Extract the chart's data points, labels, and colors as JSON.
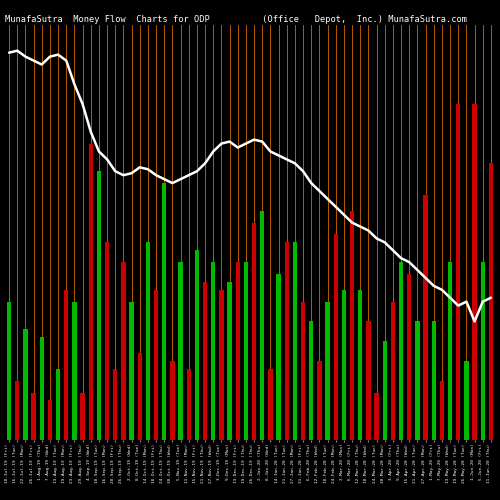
{
  "title": "MunafaSutra  Money Flow  Charts for ODP          (Office   Depot,  Inc.) MunafaSutra.com",
  "bg_color": "#000000",
  "line_color": "#ffffff",
  "separator_color": "#b85c00",
  "green_color": "#00bb00",
  "red_color": "#cc0000",
  "n_bars": 60,
  "bar_heights": [
    3.5,
    1.5,
    2.8,
    1.2,
    2.6,
    1.0,
    1.8,
    3.8,
    3.5,
    1.2,
    7.5,
    6.8,
    5.0,
    1.8,
    4.5,
    3.5,
    2.2,
    5.0,
    3.8,
    6.5,
    2.0,
    4.5,
    1.8,
    4.8,
    4.0,
    4.5,
    3.8,
    4.0,
    4.5,
    4.5,
    5.5,
    5.8,
    1.8,
    4.2,
    5.0,
    5.0,
    3.5,
    3.0,
    2.0,
    3.5,
    5.2,
    3.8,
    5.8,
    3.8,
    3.0,
    1.2,
    2.5,
    3.5,
    4.5,
    4.2,
    3.0,
    6.2,
    3.0,
    1.5,
    4.5,
    8.5,
    2.0,
    8.5,
    4.5,
    7.0
  ],
  "bar_colors": [
    "green",
    "red",
    "green",
    "red",
    "green",
    "red",
    "green",
    "red",
    "green",
    "red",
    "red",
    "green",
    "red",
    "red",
    "red",
    "green",
    "red",
    "green",
    "red",
    "green",
    "red",
    "green",
    "red",
    "green",
    "red",
    "green",
    "red",
    "green",
    "red",
    "green",
    "red",
    "green",
    "red",
    "green",
    "red",
    "green",
    "red",
    "green",
    "red",
    "green",
    "red",
    "green",
    "red",
    "green",
    "red",
    "red",
    "green",
    "red",
    "green",
    "red",
    "green",
    "red",
    "green",
    "red",
    "green",
    "red",
    "green",
    "red",
    "green",
    "red"
  ],
  "line_values": [
    9.8,
    9.85,
    9.7,
    9.6,
    9.5,
    9.7,
    9.75,
    9.6,
    9.0,
    8.5,
    7.8,
    7.3,
    7.1,
    6.8,
    6.7,
    6.75,
    6.9,
    6.85,
    6.7,
    6.6,
    6.5,
    6.6,
    6.7,
    6.8,
    7.0,
    7.3,
    7.5,
    7.55,
    7.4,
    7.5,
    7.6,
    7.55,
    7.3,
    7.2,
    7.1,
    7.0,
    6.8,
    6.5,
    6.3,
    6.1,
    5.9,
    5.7,
    5.5,
    5.4,
    5.3,
    5.1,
    5.0,
    4.8,
    4.6,
    4.5,
    4.3,
    4.1,
    3.9,
    3.8,
    3.6,
    3.4,
    3.5,
    3.0,
    3.5,
    3.6
  ],
  "xlabels": [
    "10-Jul-19 (Fri)",
    "16-Jul-19 (Tue)",
    "22-Jul-19 (Mon)",
    "26-Jul-19 (Fri)",
    "1-Aug-19 (Thu)",
    "7-Aug-19 (Wed)",
    "13-Aug-19 (Tue)",
    "19-Aug-19 (Mon)",
    "23-Aug-19 (Fri)",
    "29-Aug-19 (Thu)",
    "4-Sep-19 (Wed)",
    "10-Sep-19 (Tue)",
    "16-Sep-19 (Mon)",
    "20-Sep-19 (Fri)",
    "26-Sep-19 (Thu)",
    "2-Oct-19 (Wed)",
    "8-Oct-19 (Tue)",
    "14-Oct-19 (Mon)",
    "18-Oct-19 (Fri)",
    "24-Oct-19 (Thu)",
    "30-Oct-19 (Wed)",
    "5-Nov-19 (Tue)",
    "11-Nov-19 (Mon)",
    "15-Nov-19 (Fri)",
    "21-Nov-19 (Thu)",
    "27-Nov-19 (Wed)",
    "3-Dec-19 (Tue)",
    "9-Dec-19 (Mon)",
    "13-Dec-19 (Fri)",
    "19-Dec-19 (Thu)",
    "26-Dec-19 (Thu)",
    "2-Jan-20 (Thu)",
    "8-Jan-20 (Wed)",
    "14-Jan-20 (Tue)",
    "21-Jan-20 (Tue)",
    "27-Jan-20 (Mon)",
    "31-Jan-20 (Fri)",
    "6-Feb-20 (Thu)",
    "12-Feb-20 (Wed)",
    "18-Feb-20 (Tue)",
    "24-Feb-20 (Mon)",
    "2-Mar-20 (Mon)",
    "6-Mar-20 (Fri)",
    "12-Mar-20 (Thu)",
    "18-Mar-20 (Wed)",
    "24-Mar-20 (Tue)",
    "30-Mar-20 (Mon)",
    "3-Apr-20 (Fri)",
    "9-Apr-20 (Thu)",
    "15-Apr-20 (Wed)",
    "21-Apr-20 (Tue)",
    "27-Apr-20 (Mon)",
    "1-May-20 (Fri)",
    "7-May-20 (Thu)",
    "13-May-20 (Wed)",
    "19-May-20 (Tue)",
    "26-May-20 (Tue)",
    "1-Jun-20 (Mon)",
    "5-Jun-20 (Fri)",
    "11-Jun-20 (Thu)"
  ],
  "ylim_max": 10.5,
  "figsize": [
    5.0,
    5.0
  ],
  "dpi": 100
}
